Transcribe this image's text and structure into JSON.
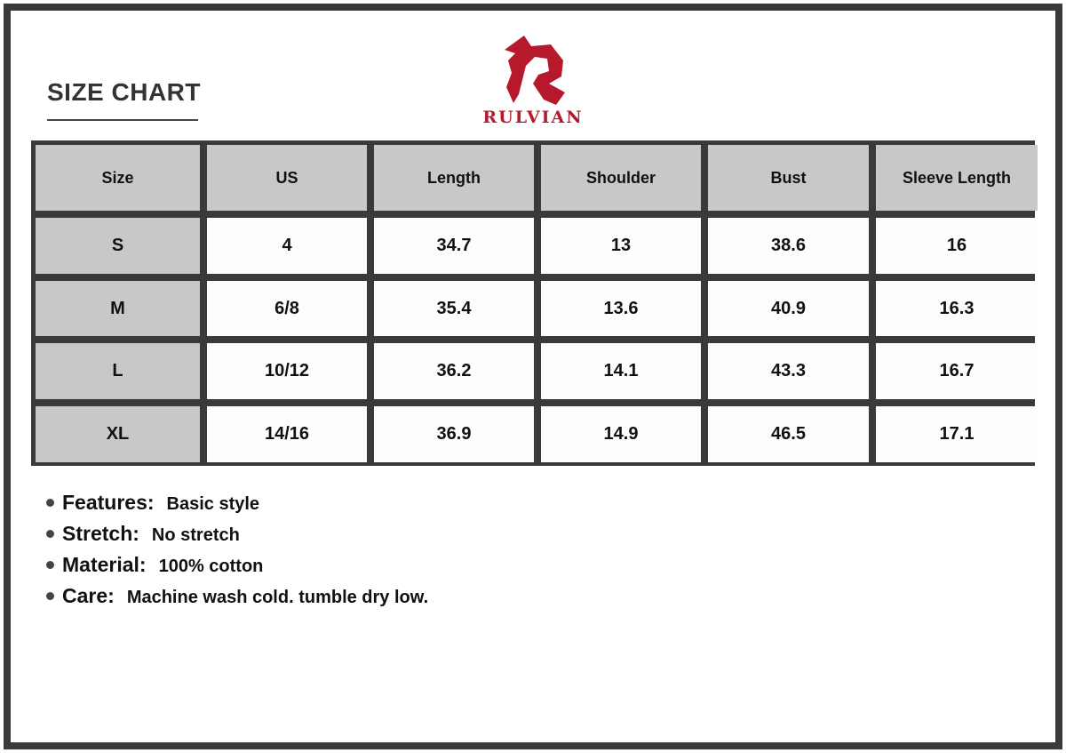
{
  "title": "SIZE CHART",
  "brand": {
    "name": "RULVIAN",
    "color": "#b5192b"
  },
  "table": {
    "headers": [
      "Size",
      "US",
      "Length",
      "Shoulder",
      "Bust",
      "Sleeve Length"
    ],
    "rows": [
      [
        "S",
        "4",
        "34.7",
        "13",
        "38.6",
        "16"
      ],
      [
        "M",
        "6/8",
        "35.4",
        "13.6",
        "40.9",
        "16.3"
      ],
      [
        "L",
        "10/12",
        "36.2",
        "14.1",
        "43.3",
        "16.7"
      ],
      [
        "XL",
        "14/16",
        "36.9",
        "14.9",
        "46.5",
        "17.1"
      ]
    ]
  },
  "features": [
    {
      "label": "Features:",
      "value": "Basic style"
    },
    {
      "label": "Stretch:",
      "value": "No stretch"
    },
    {
      "label": "Material:",
      "value": "100% cotton"
    },
    {
      "label": "Care:",
      "value": "Machine wash cold. tumble dry low."
    }
  ]
}
